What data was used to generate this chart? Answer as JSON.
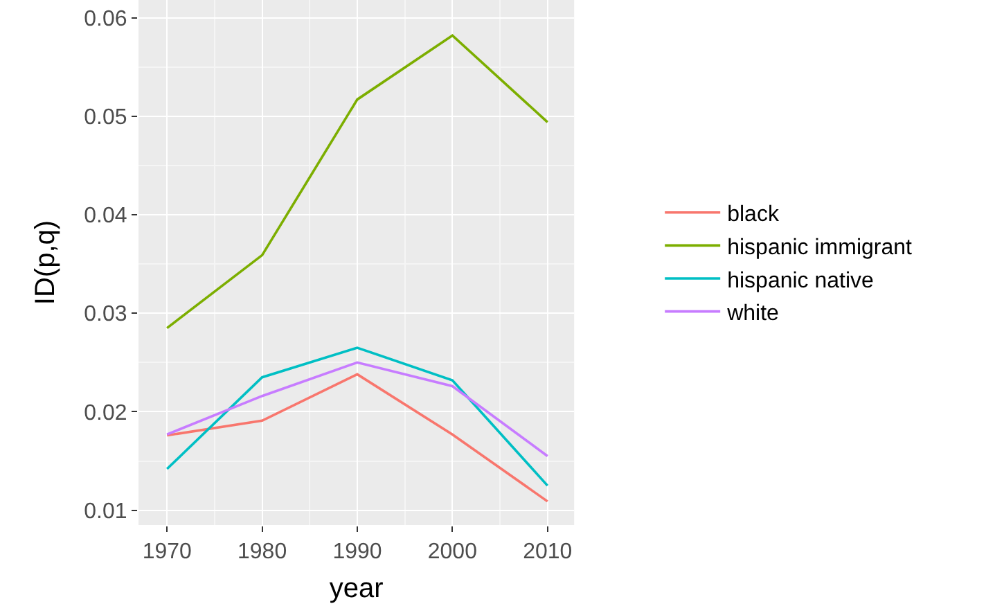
{
  "chart_data": {
    "type": "line",
    "xlabel": "year",
    "ylabel": "ID(p,q)",
    "x": [
      1970,
      1980,
      1990,
      2000,
      2010
    ],
    "series": [
      {
        "name": "black",
        "color": "#f8766d",
        "values": [
          0.0176,
          0.0191,
          0.0238,
          0.0177,
          0.0109
        ]
      },
      {
        "name": "hispanic immigrant",
        "color": "#7cae00",
        "values": [
          0.0285,
          0.0359,
          0.0517,
          0.0582,
          0.0494
        ]
      },
      {
        "name": "hispanic native",
        "color": "#00bfc4",
        "values": [
          0.0142,
          0.0235,
          0.0265,
          0.0232,
          0.0125
        ]
      },
      {
        "name": "white",
        "color": "#c77cff",
        "values": [
          0.0177,
          0.0216,
          0.025,
          0.0226,
          0.0155
        ]
      }
    ],
    "xlim": [
      1967,
      2012.8
    ],
    "xticks": [
      1970,
      1980,
      1990,
      2000,
      2010
    ],
    "ylim": [
      0.0085,
      0.0618
    ],
    "yticks": [
      {
        "value": 0.01,
        "label": "0.01"
      },
      {
        "value": 0.02,
        "label": "0.02"
      },
      {
        "value": 0.03,
        "label": "0.03"
      },
      {
        "value": 0.04,
        "label": "0.04"
      },
      {
        "value": 0.05,
        "label": "0.05"
      },
      {
        "value": 0.06,
        "label": "0.06"
      }
    ],
    "grid": true,
    "legend": "right",
    "marker": "none",
    "line_style": "solid"
  }
}
